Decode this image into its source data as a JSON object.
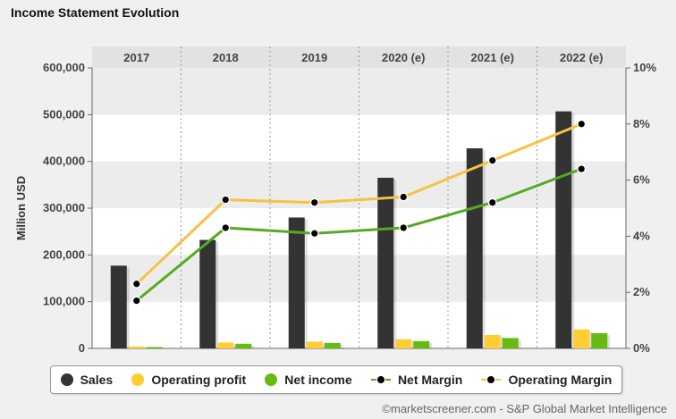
{
  "title": "Income Statement Evolution",
  "source": "©marketscreener.com - S&P Global Market Intelligence",
  "colors": {
    "sales": "#333333",
    "operating_profit": "#ffcc33",
    "net_income": "#66bb11",
    "net_margin": "#55aa22",
    "operating_margin": "#f5c242"
  },
  "chart_data": {
    "type": "bar",
    "title": "Income Statement Evolution",
    "categories": [
      "2017",
      "2018",
      "2019",
      "2020 (e)",
      "2021 (e)",
      "2022 (e)"
    ],
    "ylabel": "Million USD",
    "ylim": [
      0,
      600000
    ],
    "yticks": [
      "0",
      "100,000",
      "200,000",
      "300,000",
      "400,000",
      "500,000",
      "600,000"
    ],
    "y2lim": [
      0,
      10
    ],
    "y2ticks": [
      "0%",
      "2%",
      "4%",
      "6%",
      "8%",
      "10%"
    ],
    "series": [
      {
        "name": "Sales",
        "kind": "bar",
        "axis": "left",
        "values": [
          177000,
          232000,
          280000,
          365000,
          428000,
          507000
        ]
      },
      {
        "name": "Operating profit",
        "kind": "bar",
        "axis": "left",
        "values": [
          4100,
          12400,
          14500,
          19700,
          28600,
          40600
        ]
      },
      {
        "name": "Net income",
        "kind": "bar",
        "axis": "left",
        "values": [
          3000,
          10000,
          11600,
          15700,
          22300,
          32500
        ]
      },
      {
        "name": "Net Margin",
        "kind": "line",
        "axis": "right",
        "values": [
          1.7,
          4.3,
          4.1,
          4.3,
          5.2,
          6.4
        ]
      },
      {
        "name": "Operating Margin",
        "kind": "line",
        "axis": "right",
        "values": [
          2.3,
          5.3,
          5.2,
          5.4,
          6.7,
          8.0
        ]
      }
    ],
    "legend": "bottom",
    "grid": true
  }
}
